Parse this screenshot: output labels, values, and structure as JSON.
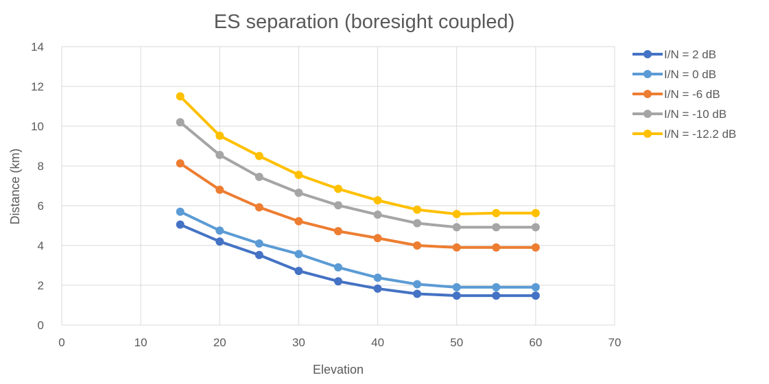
{
  "chart_data": {
    "type": "line",
    "title": "ES separation (boresight coupled)",
    "xlabel": "Elevation",
    "ylabel": "Distance (km)",
    "xlim": [
      0,
      70
    ],
    "ylim": [
      0,
      14
    ],
    "xticks": [
      0,
      10,
      20,
      30,
      40,
      50,
      60,
      70
    ],
    "yticks": [
      0,
      2,
      4,
      6,
      8,
      10,
      12,
      14
    ],
    "grid": true,
    "legend_position": "right",
    "x": [
      15,
      20,
      25,
      30,
      35,
      40,
      45,
      50,
      55,
      60
    ],
    "series": [
      {
        "name": "I/N = 2 dB",
        "color": "#4472C4",
        "values": [
          5.05,
          4.2,
          3.52,
          2.72,
          2.2,
          1.83,
          1.57,
          1.48,
          1.48,
          1.48
        ]
      },
      {
        "name": "I/N = 0 dB",
        "color": "#5B9BD5",
        "values": [
          5.7,
          4.75,
          4.1,
          3.57,
          2.9,
          2.38,
          2.05,
          1.9,
          1.9,
          1.9
        ]
      },
      {
        "name": "I/N = -6 dB",
        "color": "#ED7D31",
        "values": [
          8.13,
          6.8,
          5.92,
          5.22,
          4.72,
          4.37,
          4.0,
          3.9,
          3.9,
          3.9
        ]
      },
      {
        "name": "I/N = -10 dB",
        "color": "#A5A5A5",
        "values": [
          10.2,
          8.55,
          7.45,
          6.65,
          6.02,
          5.55,
          5.12,
          4.92,
          4.92,
          4.92
        ]
      },
      {
        "name": "I/N = -12.2 dB",
        "color": "#FFC000",
        "values": [
          11.5,
          9.52,
          8.5,
          7.55,
          6.85,
          6.27,
          5.8,
          5.58,
          5.63,
          5.63
        ]
      }
    ]
  }
}
